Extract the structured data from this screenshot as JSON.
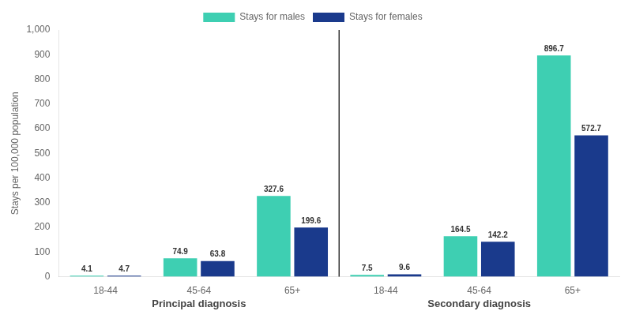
{
  "chart_data": {
    "type": "bar",
    "ylabel": "Stays per 100,000 population",
    "groups": [
      {
        "name": "Principal diagnosis",
        "categories": [
          "18-44",
          "45-64",
          "65+"
        ]
      },
      {
        "name": "Secondary diagnosis",
        "categories": [
          "18-44",
          "45-64",
          "65+"
        ]
      }
    ],
    "series": [
      {
        "name": "Stays for males",
        "color": "#3ECFB2",
        "values": [
          4.1,
          74.9,
          327.6,
          7.5,
          164.5,
          896.7
        ]
      },
      {
        "name": "Stays for females",
        "color": "#1A3A8C",
        "values": [
          4.7,
          63.8,
          199.6,
          9.6,
          142.2,
          572.7
        ]
      }
    ],
    "ylim": [
      0,
      1000
    ],
    "yticks": [
      0,
      100,
      200,
      300,
      400,
      500,
      600,
      700,
      800,
      900,
      {
        "value": 1000,
        "label": "1,000"
      }
    ],
    "data_labels": true,
    "grid": false,
    "legend": "top"
  }
}
